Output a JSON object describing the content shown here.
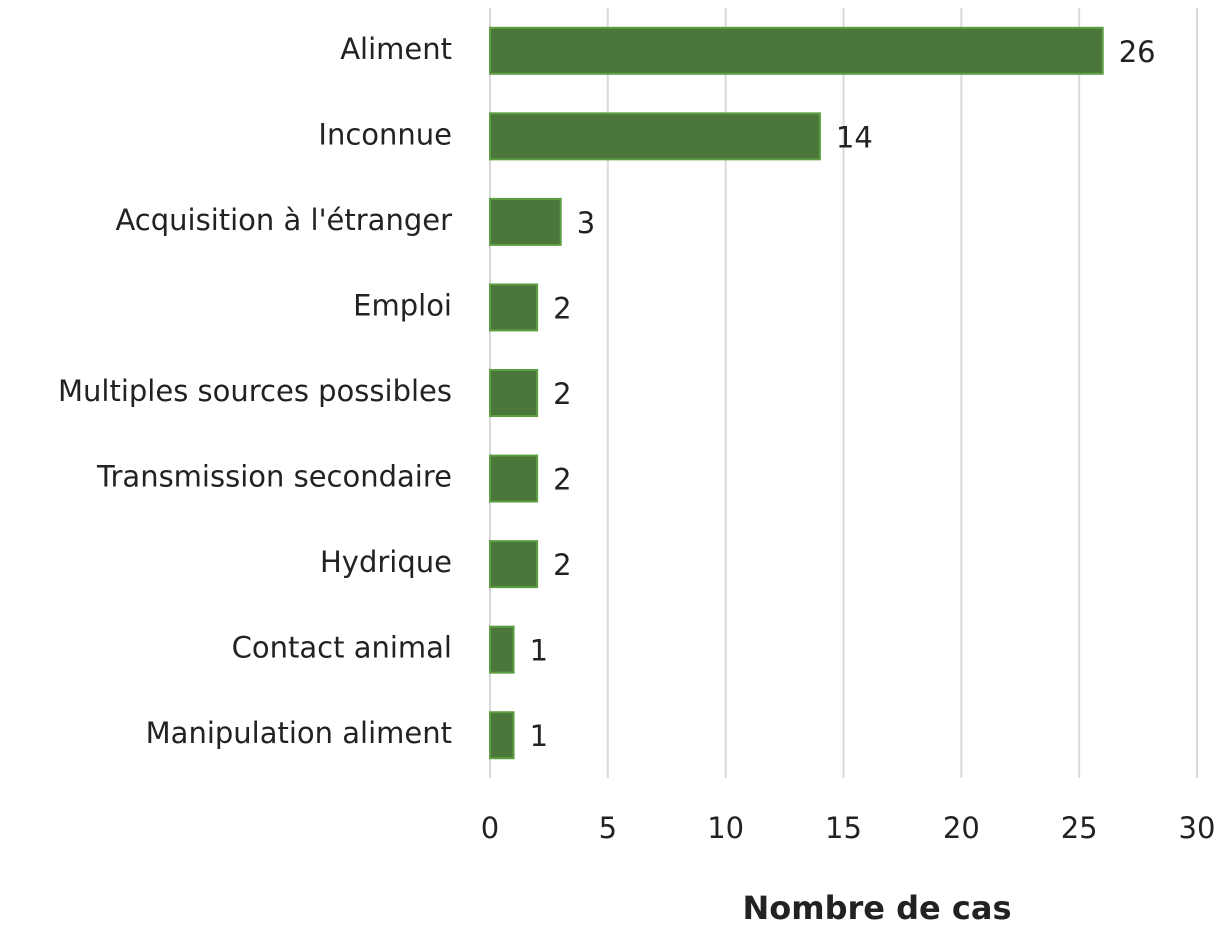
{
  "chart_data": {
    "type": "bar",
    "orientation": "horizontal",
    "x_label": "Nombre de cas",
    "categories": [
      "Aliment",
      "Inconnue",
      "Acquisition à l'étranger",
      "Emploi",
      "Multiples sources possibles",
      "Transmission secondaire",
      "Hydrique",
      "Contact animal",
      "Manipulation aliment"
    ],
    "values": [
      26,
      14,
      3,
      2,
      2,
      2,
      2,
      1,
      1
    ],
    "color": "#4b773a",
    "edge_color": "#5e9e43",
    "xlim": [
      0,
      30
    ],
    "xticks": [
      0,
      5,
      10,
      15,
      20,
      25,
      30
    ],
    "grid": true
  }
}
